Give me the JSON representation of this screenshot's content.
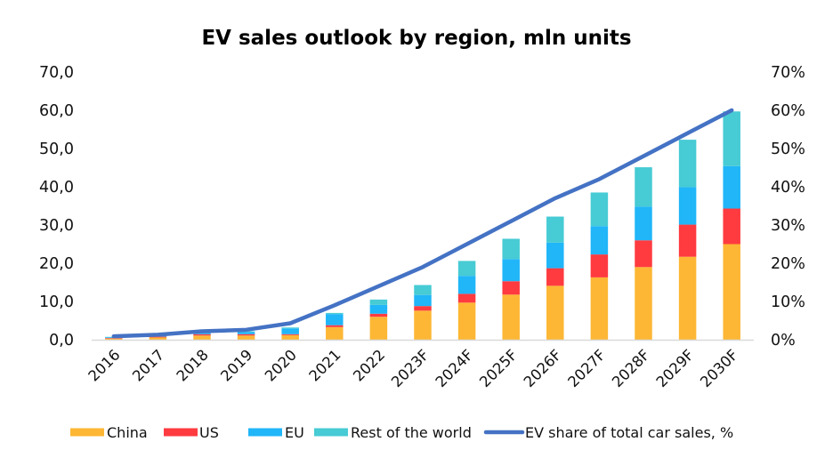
{
  "chart_data": {
    "type": "bar",
    "stacked": true,
    "title": "EV sales outlook by region, mln units",
    "xlabel": "",
    "ylabel": "",
    "y2label": "",
    "categories": [
      "2016",
      "2017",
      "2018",
      "2019",
      "2020",
      "2021",
      "2022",
      "2023F",
      "2024F",
      "2025F",
      "2026F",
      "2027F",
      "2028F",
      "2029F",
      "2030F"
    ],
    "series": [
      {
        "name": "China",
        "type": "bar",
        "axis": "left",
        "color": "#FDB735",
        "values": [
          0.3,
          0.6,
          1.1,
          1.1,
          1.2,
          3.3,
          6.0,
          7.6,
          9.7,
          11.8,
          14.1,
          16.3,
          19.0,
          21.7,
          25.0
        ]
      },
      {
        "name": "US",
        "type": "bar",
        "axis": "left",
        "color": "#FF3B40",
        "values": [
          0.15,
          0.2,
          0.35,
          0.35,
          0.25,
          0.5,
          0.8,
          1.2,
          2.3,
          3.5,
          4.6,
          6.0,
          7.0,
          8.4,
          9.3
        ]
      },
      {
        "name": "EU",
        "type": "bar",
        "axis": "left",
        "color": "#20B6F8",
        "values": [
          0.2,
          0.3,
          0.4,
          0.6,
          1.5,
          2.9,
          2.3,
          2.9,
          4.7,
          5.8,
          6.7,
          7.4,
          8.8,
          9.8,
          11.1
        ]
      },
      {
        "name": "Rest of the world",
        "type": "bar",
        "axis": "left",
        "color": "#47CBD4",
        "values": [
          0.1,
          0.1,
          0.15,
          0.15,
          0.25,
          0.3,
          1.4,
          2.6,
          3.9,
          5.3,
          6.8,
          8.8,
          10.3,
          12.4,
          14.3
        ]
      },
      {
        "name": "EV share of total car sales, %",
        "type": "line",
        "axis": "right",
        "color": "#4472C4",
        "values": [
          0.9,
          1.3,
          2.2,
          2.6,
          4.3,
          9.0,
          14.0,
          19.0,
          25.0,
          31.0,
          37.0,
          42.0,
          48.0,
          54.0,
          60.0
        ]
      }
    ],
    "ylim": [
      0,
      70
    ],
    "y2lim": [
      0,
      70
    ],
    "yticks": [
      "0,0",
      "10,0",
      "20,0",
      "30,0",
      "40,0",
      "50,0",
      "60,0",
      "70,0"
    ],
    "y2ticks": [
      "0%",
      "10%",
      "20%",
      "30%",
      "40%",
      "50%",
      "60%",
      "70%"
    ],
    "grid": false,
    "legend": {
      "position": "bottom",
      "entries": [
        "China",
        "US",
        "EU",
        "Rest of the world",
        "EV share of total car sales, %"
      ]
    }
  }
}
